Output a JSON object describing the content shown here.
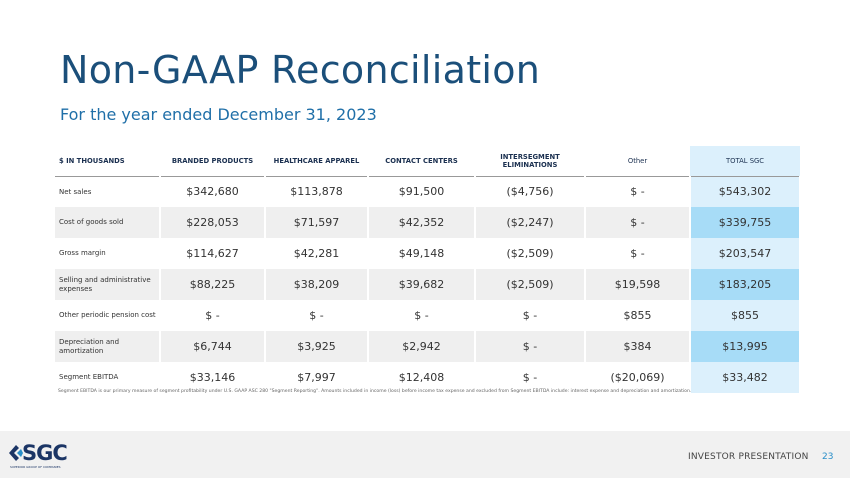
{
  "title": "Non-GAAP Reconciliation",
  "subtitle": "For the year ended December 31, 2023",
  "table": {
    "headers": [
      "$ IN THOUSANDS",
      "BRANDED PRODUCTS",
      "HEALTHCARE APPAREL",
      "CONTACT CENTERS",
      "INTERSEGMENT ELIMINATIONS",
      "Other",
      "TOTAL SGC"
    ],
    "rows": [
      [
        "Net sales",
        "$342,680",
        "$113,878",
        "$91,500",
        "($4,756)",
        "$ -",
        "$543,302"
      ],
      [
        "Cost of goods sold",
        "$228,053",
        "$71,597",
        "$42,352",
        "($2,247)",
        "$ -",
        "$339,755"
      ],
      [
        "Gross margin",
        "$114,627",
        "$42,281",
        "$49,148",
        "($2,509)",
        "$ -",
        "$203,547"
      ],
      [
        "Selling and administrative expenses",
        "$88,225",
        "$38,209",
        "$39,682",
        "($2,509)",
        "$19,598",
        "$183,205"
      ],
      [
        "Other periodic pension cost",
        "$ -",
        "$ -",
        "$ -",
        "$ -",
        "$855",
        "$855"
      ],
      [
        "Depreciation and amortization",
        "$6,744",
        "$3,925",
        "$2,942",
        "$ -",
        "$384",
        "$13,995"
      ],
      [
        "Segment EBITDA",
        "$33,146",
        "$7,997",
        "$12,408",
        "$ -",
        "($20,069)",
        "$33,482"
      ]
    ]
  },
  "note": "Segment EBITDA is our primary measure of segment profitability under U.S. GAAP ASC 280 \"Segment Reporting\". Amounts included in income (loss) before income tax expense and excluded from Segment EBITDA include: interest expense and depreciation and amortization.",
  "footer": {
    "logo": "SGC",
    "logo_sub": "SUPERIOR GROUP OF COMPANIES",
    "label": "INVESTOR PRESENTATION",
    "page": "23"
  },
  "colors": {
    "title": "#1b4f7a",
    "total_col": "#dcf0fc",
    "total_col_shaded": "#a7dcf7"
  }
}
